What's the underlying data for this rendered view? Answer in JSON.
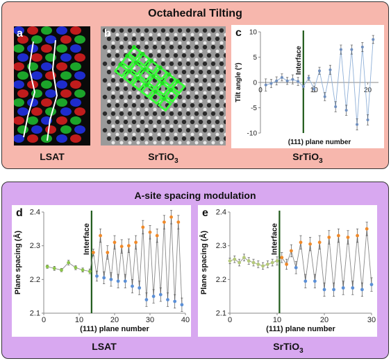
{
  "top_section": {
    "title": "Octahedral Tilting",
    "panel_a": {
      "letter": "a",
      "caption": "LSAT"
    },
    "panel_b": {
      "letter": "b",
      "caption_main": "SrTiO",
      "caption_sub": "3"
    },
    "panel_c": {
      "letter": "c",
      "caption_main": "SrTiO",
      "caption_sub": "3"
    }
  },
  "bottom_section": {
    "title": "A-site spacing modulation",
    "panel_d": {
      "letter": "d",
      "caption": "LSAT"
    },
    "panel_e": {
      "letter": "e",
      "caption_main": "SrTiO",
      "caption_sub": "3"
    }
  },
  "chart_data": [
    {
      "id": "c",
      "type": "line",
      "xlabel": "(111) plane number",
      "ylabel": "Tilt angle (°)",
      "annotation": "Interface",
      "interface_x": 8,
      "xlim": [
        0,
        22
      ],
      "ylim": [
        -10,
        10
      ],
      "xticks": [
        0,
        10,
        20
      ],
      "yticks": [
        -10,
        -5,
        0,
        5,
        10
      ],
      "x": [
        1,
        2,
        3,
        4,
        5,
        6,
        7,
        8,
        9,
        10,
        11,
        12,
        13,
        14,
        15,
        16,
        17,
        18,
        19,
        20,
        21
      ],
      "y": [
        -0.5,
        -0.2,
        0.3,
        1.0,
        0.3,
        0.6,
        0.2,
        -0.8,
        0.9,
        -1.3,
        2.3,
        -2.8,
        2.5,
        -4.8,
        6.5,
        -5.5,
        6.5,
        -8.3,
        7.0,
        -7.4,
        8.5
      ],
      "err": [
        1.2,
        0.8,
        0.8,
        0.7,
        0.7,
        0.9,
        0.8,
        0.5,
        0.5,
        0.6,
        0.7,
        0.8,
        0.9,
        1.0,
        0.9,
        1.0,
        0.9,
        1.1,
        0.9,
        1.0,
        0.8
      ]
    },
    {
      "id": "d",
      "type": "line",
      "xlabel": "(111) plane number",
      "ylabel": "Plane spacing (Å)",
      "annotation": "Interface",
      "interface_x": 13.5,
      "xlim": [
        0,
        40
      ],
      "ylim": [
        2.1,
        2.4
      ],
      "xticks": [
        0,
        10,
        20,
        30,
        40
      ],
      "yticks": [
        2.1,
        2.2,
        2.3,
        2.4
      ],
      "x": [
        1,
        3,
        5,
        7,
        9,
        11,
        13,
        14,
        15,
        16,
        17,
        18,
        19,
        20,
        21,
        22,
        23,
        24,
        25,
        26,
        27,
        28,
        29,
        30,
        31,
        32,
        33,
        34,
        35,
        36,
        37,
        38,
        39
      ],
      "y": [
        2.238,
        2.233,
        2.228,
        2.25,
        2.235,
        2.228,
        2.224,
        2.28,
        2.21,
        2.33,
        2.205,
        2.28,
        2.2,
        2.31,
        2.195,
        2.298,
        2.195,
        2.3,
        2.18,
        2.31,
        2.175,
        2.355,
        2.14,
        2.34,
        2.15,
        2.33,
        2.155,
        2.37,
        2.14,
        2.385,
        2.135,
        2.37,
        2.125
      ],
      "err": [
        0.005,
        0.006,
        0.005,
        0.007,
        0.006,
        0.006,
        0.007,
        0.01,
        0.015,
        0.02,
        0.018,
        0.02,
        0.02,
        0.02,
        0.02,
        0.02,
        0.02,
        0.02,
        0.02,
        0.02,
        0.02,
        0.02,
        0.02,
        0.02,
        0.02,
        0.02,
        0.02,
        0.02,
        0.02,
        0.02,
        0.02,
        0.02,
        0.02
      ],
      "color_substrate": "#8bc34a",
      "color_high": "#f08a2a",
      "color_low": "#5b8fd6"
    },
    {
      "id": "e",
      "type": "line",
      "xlabel": "(111) plane number",
      "ylabel": "Plane spacing (Å)",
      "annotation": "Interface",
      "interface_x": 10.5,
      "xlim": [
        0,
        30
      ],
      "ylim": [
        2.1,
        2.4
      ],
      "xticks": [
        0,
        10,
        20,
        30
      ],
      "yticks": [
        2.1,
        2.2,
        2.3,
        2.4
      ],
      "x": [
        0,
        1,
        2,
        3,
        4,
        5,
        6,
        7,
        8,
        9,
        10,
        11,
        12,
        13,
        14,
        15,
        16,
        17,
        18,
        19,
        20,
        21,
        22,
        23,
        24,
        25,
        26,
        27,
        28,
        29,
        30
      ],
      "y": [
        2.255,
        2.26,
        2.25,
        2.265,
        2.255,
        2.25,
        2.245,
        2.24,
        2.245,
        2.25,
        2.255,
        2.265,
        2.245,
        2.285,
        2.235,
        2.31,
        2.195,
        2.305,
        2.195,
        2.31,
        2.17,
        2.325,
        2.17,
        2.33,
        2.175,
        2.325,
        2.175,
        2.33,
        2.17,
        2.35,
        2.185
      ],
      "err": [
        0.008,
        0.01,
        0.01,
        0.01,
        0.01,
        0.01,
        0.01,
        0.01,
        0.01,
        0.01,
        0.012,
        0.015,
        0.015,
        0.018,
        0.018,
        0.02,
        0.02,
        0.02,
        0.02,
        0.02,
        0.02,
        0.02,
        0.02,
        0.02,
        0.02,
        0.02,
        0.02,
        0.02,
        0.02,
        0.02,
        0.02
      ],
      "color_substrate": "#b5c97a",
      "color_high": "#f08a2a",
      "color_low": "#5b8fd6"
    }
  ]
}
